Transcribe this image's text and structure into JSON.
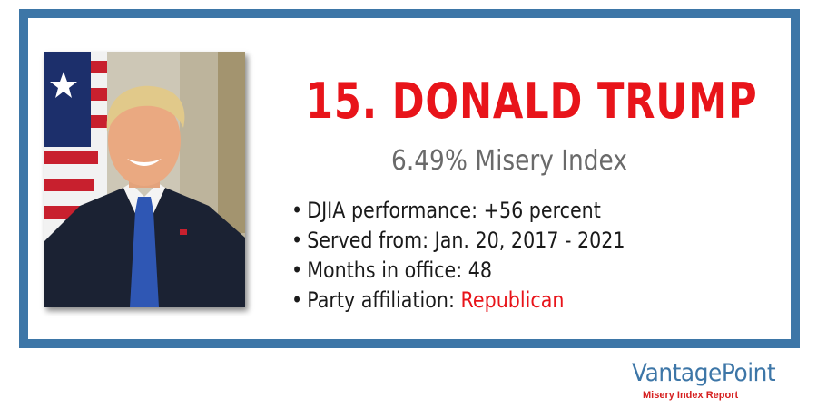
{
  "card": {
    "title": "15. DONALD TRUMP",
    "subtitle": "6.49% Misery Index",
    "facts": [
      {
        "label": "DJIA performance: ",
        "value": "+56 percent"
      },
      {
        "label": "Served from: ",
        "value": "Jan. 20, 2017 - 2021"
      },
      {
        "label": "Months in office: ",
        "value": "48"
      },
      {
        "label": "Party affiliation: ",
        "value": "Republican"
      }
    ],
    "bullet_glyph": "•"
  },
  "brand": {
    "name": "VantagePoint",
    "tagline": "Misery Index Report"
  },
  "colors": {
    "frame": "#3d76a7",
    "title_red": "#e8141a",
    "subtitle_gray": "#6a6a6a",
    "brand_blue": "#3d76a7",
    "brand_red": "#d62020"
  }
}
